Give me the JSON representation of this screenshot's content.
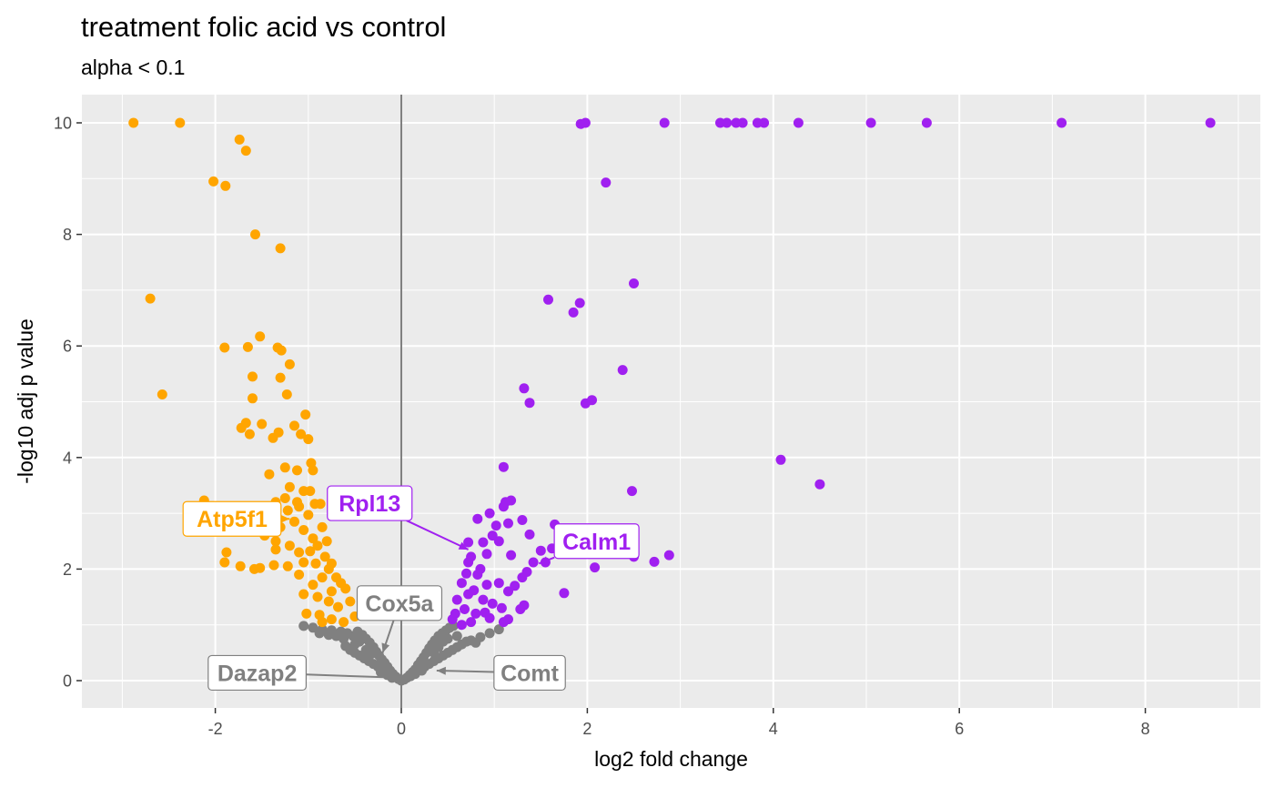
{
  "chart_data": {
    "type": "scatter",
    "title": "treatment folic acid vs control",
    "subtitle": "alpha < 0.1",
    "xlabel": "log2 fold change",
    "ylabel": "-log10 adj p value",
    "xlim": [
      -3.4,
      9.1
    ],
    "ylim": [
      -0.5,
      10.5
    ],
    "x_ticks": [
      -2,
      0,
      2,
      4,
      6,
      8
    ],
    "x_tick_labels": [
      "-2",
      "0",
      "2",
      "4",
      "6",
      "8"
    ],
    "y_ticks": [
      0,
      2,
      4,
      6,
      8,
      10
    ],
    "y_tick_labels": [
      "0",
      "2",
      "4",
      "6",
      "8",
      "10"
    ],
    "grid": true,
    "legend": "none",
    "vline_x": 0,
    "colors": {
      "down": "#FFA500",
      "up": "#A020F0",
      "ns": "#808080",
      "panel": "#EBEBEB",
      "grid": "#FFFFFF"
    },
    "series": [
      {
        "group": "down",
        "color": "#FFA500",
        "points": [
          [
            -2.88,
            10.0
          ],
          [
            -2.38,
            10.0
          ],
          [
            -1.74,
            9.7
          ],
          [
            -1.67,
            9.5
          ],
          [
            -2.02,
            8.95
          ],
          [
            -1.89,
            8.87
          ],
          [
            -1.57,
            8.0
          ],
          [
            -1.3,
            7.75
          ],
          [
            -2.7,
            6.85
          ],
          [
            -2.57,
            5.13
          ],
          [
            -1.9,
            5.97
          ],
          [
            -1.65,
            5.98
          ],
          [
            -1.52,
            6.17
          ],
          [
            -1.33,
            5.97
          ],
          [
            -1.29,
            5.92
          ],
          [
            -1.2,
            5.67
          ],
          [
            -1.6,
            5.45
          ],
          [
            -1.3,
            5.43
          ],
          [
            -1.6,
            5.06
          ],
          [
            -1.23,
            5.13
          ],
          [
            -1.67,
            4.62
          ],
          [
            -1.72,
            4.53
          ],
          [
            -1.63,
            4.42
          ],
          [
            -1.5,
            4.6
          ],
          [
            -1.38,
            4.35
          ],
          [
            -1.32,
            4.45
          ],
          [
            -1.15,
            4.57
          ],
          [
            -1.08,
            4.42
          ],
          [
            -1.03,
            4.77
          ],
          [
            -1.0,
            4.33
          ],
          [
            -0.97,
            3.9
          ],
          [
            -0.95,
            3.77
          ],
          [
            -1.42,
            3.7
          ],
          [
            -1.25,
            3.82
          ],
          [
            -1.12,
            3.77
          ],
          [
            -1.2,
            3.47
          ],
          [
            -1.05,
            3.4
          ],
          [
            -1.25,
            3.27
          ],
          [
            -1.12,
            3.2
          ],
          [
            -0.98,
            3.4
          ],
          [
            -0.93,
            3.17
          ],
          [
            -1.35,
            3.2
          ],
          [
            -1.22,
            3.05
          ],
          [
            -1.1,
            3.12
          ],
          [
            -1.0,
            2.97
          ],
          [
            -0.87,
            3.17
          ],
          [
            -1.52,
            2.85
          ],
          [
            -1.4,
            2.92
          ],
          [
            -1.3,
            2.75
          ],
          [
            -1.15,
            2.85
          ],
          [
            -1.05,
            2.7
          ],
          [
            -0.95,
            2.55
          ],
          [
            -0.85,
            2.75
          ],
          [
            -0.8,
            2.5
          ],
          [
            -1.47,
            2.6
          ],
          [
            -1.35,
            2.5
          ],
          [
            -1.2,
            2.42
          ],
          [
            -1.1,
            2.3
          ],
          [
            -0.98,
            2.32
          ],
          [
            -0.9,
            2.42
          ],
          [
            -0.82,
            2.22
          ],
          [
            -0.75,
            2.1
          ],
          [
            -2.12,
            3.23
          ],
          [
            -1.88,
            2.3
          ],
          [
            -1.9,
            2.12
          ],
          [
            -1.73,
            2.05
          ],
          [
            -1.58,
            2.0
          ],
          [
            -1.52,
            2.02
          ],
          [
            -1.37,
            2.07
          ],
          [
            -1.22,
            2.05
          ],
          [
            -1.05,
            2.12
          ],
          [
            -0.92,
            2.1
          ],
          [
            -0.78,
            2.0
          ],
          [
            -0.7,
            1.85
          ],
          [
            -0.65,
            1.75
          ],
          [
            -1.1,
            1.9
          ],
          [
            -0.95,
            1.72
          ],
          [
            -0.85,
            1.85
          ],
          [
            -0.75,
            1.6
          ],
          [
            -0.6,
            1.65
          ],
          [
            -1.05,
            1.55
          ],
          [
            -0.9,
            1.5
          ],
          [
            -0.78,
            1.42
          ],
          [
            -0.68,
            1.32
          ],
          [
            -0.55,
            1.42
          ],
          [
            -1.02,
            1.2
          ],
          [
            -0.88,
            1.18
          ],
          [
            -0.75,
            1.1
          ],
          [
            -0.62,
            1.05
          ],
          [
            -0.5,
            1.15
          ],
          [
            -0.85,
            1.05
          ],
          [
            -1.35,
            2.35
          ]
        ]
      },
      {
        "group": "up",
        "color": "#A020F0",
        "points": [
          [
            1.93,
            9.98
          ],
          [
            1.98,
            10.0
          ],
          [
            2.83,
            10.0
          ],
          [
            3.43,
            10.0
          ],
          [
            3.5,
            10.0
          ],
          [
            3.6,
            10.0
          ],
          [
            3.67,
            10.0
          ],
          [
            3.83,
            10.0
          ],
          [
            3.9,
            10.0
          ],
          [
            4.27,
            10.0
          ],
          [
            5.05,
            10.0
          ],
          [
            5.65,
            10.0
          ],
          [
            7.1,
            10.0
          ],
          [
            8.7,
            10.0
          ],
          [
            2.2,
            8.93
          ],
          [
            2.5,
            7.12
          ],
          [
            1.58,
            6.83
          ],
          [
            1.92,
            6.77
          ],
          [
            1.85,
            6.6
          ],
          [
            2.38,
            5.57
          ],
          [
            1.32,
            5.24
          ],
          [
            1.38,
            4.98
          ],
          [
            1.98,
            4.97
          ],
          [
            2.05,
            5.03
          ],
          [
            4.08,
            3.96
          ],
          [
            4.5,
            3.52
          ],
          [
            2.48,
            3.4
          ],
          [
            1.1,
            3.83
          ],
          [
            1.18,
            3.23
          ],
          [
            1.1,
            3.12
          ],
          [
            0.95,
            3.0
          ],
          [
            0.82,
            2.9
          ],
          [
            1.12,
            3.2
          ],
          [
            1.3,
            2.88
          ],
          [
            1.15,
            2.82
          ],
          [
            1.38,
            2.62
          ],
          [
            1.02,
            2.78
          ],
          [
            0.98,
            2.6
          ],
          [
            1.05,
            2.5
          ],
          [
            0.88,
            2.48
          ],
          [
            0.72,
            2.48
          ],
          [
            0.75,
            2.22
          ],
          [
            0.92,
            2.27
          ],
          [
            1.18,
            2.25
          ],
          [
            1.5,
            2.33
          ],
          [
            1.62,
            2.37
          ],
          [
            1.65,
            2.8
          ],
          [
            1.42,
            2.12
          ],
          [
            1.55,
            2.12
          ],
          [
            1.35,
            1.95
          ],
          [
            1.3,
            1.85
          ],
          [
            1.22,
            1.7
          ],
          [
            1.15,
            1.6
          ],
          [
            1.05,
            1.75
          ],
          [
            0.92,
            1.72
          ],
          [
            0.82,
            1.9
          ],
          [
            0.7,
            1.92
          ],
          [
            0.65,
            1.75
          ],
          [
            0.78,
            1.62
          ],
          [
            0.88,
            1.45
          ],
          [
            0.98,
            1.38
          ],
          [
            1.08,
            1.3
          ],
          [
            1.28,
            1.28
          ],
          [
            1.32,
            1.35
          ],
          [
            1.75,
            1.57
          ],
          [
            0.72,
            1.55
          ],
          [
            0.6,
            1.45
          ],
          [
            0.68,
            1.28
          ],
          [
            0.58,
            1.2
          ],
          [
            0.8,
            1.2
          ],
          [
            0.95,
            1.12
          ],
          [
            1.1,
            1.05
          ],
          [
            1.15,
            1.1
          ],
          [
            0.65,
            1.0
          ],
          [
            0.75,
            1.05
          ],
          [
            0.9,
            1.22
          ],
          [
            0.55,
            1.1
          ],
          [
            0.72,
            2.12
          ],
          [
            2.08,
            2.03
          ],
          [
            2.5,
            2.22
          ],
          [
            2.72,
            2.13
          ],
          [
            2.88,
            2.25
          ],
          [
            0.85,
            2.0
          ]
        ]
      },
      {
        "group": "ns",
        "color": "#808080",
        "points": [
          [
            -1.05,
            0.98
          ],
          [
            -0.95,
            0.95
          ],
          [
            -0.85,
            0.92
          ],
          [
            -0.75,
            0.9
          ],
          [
            -0.65,
            0.88
          ],
          [
            -0.58,
            0.85
          ],
          [
            -0.52,
            0.8
          ],
          [
            -0.47,
            0.88
          ],
          [
            -0.42,
            0.82
          ],
          [
            -0.38,
            0.75
          ],
          [
            -0.34,
            0.68
          ],
          [
            -0.3,
            0.6
          ],
          [
            -0.27,
            0.52
          ],
          [
            -0.24,
            0.45
          ],
          [
            -0.21,
            0.38
          ],
          [
            -0.18,
            0.32
          ],
          [
            -0.15,
            0.25
          ],
          [
            -0.12,
            0.18
          ],
          [
            -0.09,
            0.12
          ],
          [
            -0.06,
            0.07
          ],
          [
            -0.03,
            0.03
          ],
          [
            0.0,
            0.0
          ],
          [
            0.03,
            0.02
          ],
          [
            0.06,
            0.05
          ],
          [
            0.09,
            0.1
          ],
          [
            0.12,
            0.15
          ],
          [
            0.15,
            0.2
          ],
          [
            0.18,
            0.28
          ],
          [
            0.21,
            0.35
          ],
          [
            0.24,
            0.42
          ],
          [
            0.27,
            0.5
          ],
          [
            0.3,
            0.58
          ],
          [
            0.33,
            0.65
          ],
          [
            0.36,
            0.72
          ],
          [
            0.4,
            0.8
          ],
          [
            0.44,
            0.85
          ],
          [
            0.48,
            0.9
          ],
          [
            0.52,
            0.95
          ],
          [
            0.56,
            0.98
          ],
          [
            -0.6,
            0.62
          ],
          [
            -0.55,
            0.55
          ],
          [
            -0.5,
            0.5
          ],
          [
            -0.45,
            0.45
          ],
          [
            -0.4,
            0.4
          ],
          [
            -0.35,
            0.35
          ],
          [
            -0.3,
            0.3
          ],
          [
            -0.25,
            0.25
          ],
          [
            -0.2,
            0.2
          ],
          [
            0.2,
            0.2
          ],
          [
            0.25,
            0.25
          ],
          [
            0.3,
            0.3
          ],
          [
            0.35,
            0.35
          ],
          [
            0.4,
            0.4
          ],
          [
            0.45,
            0.45
          ],
          [
            0.5,
            0.5
          ],
          [
            0.55,
            0.55
          ],
          [
            0.6,
            0.6
          ],
          [
            0.65,
            0.65
          ],
          [
            0.7,
            0.7
          ],
          [
            0.75,
            0.72
          ],
          [
            0.8,
            0.68
          ],
          [
            -0.62,
            0.75
          ],
          [
            -0.7,
            0.8
          ],
          [
            -0.78,
            0.82
          ],
          [
            -0.88,
            0.85
          ],
          [
            -0.45,
            0.7
          ],
          [
            -0.5,
            0.65
          ],
          [
            0.45,
            0.7
          ],
          [
            0.5,
            0.75
          ],
          [
            0.6,
            0.8
          ],
          [
            0.85,
            0.78
          ],
          [
            0.95,
            0.85
          ],
          [
            1.05,
            0.92
          ],
          [
            -0.38,
            0.55
          ],
          [
            -0.32,
            0.48
          ],
          [
            0.35,
            0.5
          ],
          [
            0.4,
            0.6
          ],
          [
            -0.15,
            0.1
          ],
          [
            0.1,
            0.08
          ],
          [
            -0.1,
            0.05
          ],
          [
            0.15,
            0.12
          ],
          [
            -0.22,
            0.15
          ],
          [
            0.22,
            0.18
          ]
        ]
      }
    ],
    "labels": [
      {
        "text": "Atp5f1",
        "color": "#FFA500",
        "x": -1.2,
        "y": 2.9,
        "tx": -1.82,
        "ty": 2.9
      },
      {
        "text": "Rpl13",
        "color": "#A020F0",
        "x": 0.72,
        "y": 2.35,
        "tx": -0.34,
        "ty": 3.18
      },
      {
        "text": "Calm1",
        "color": "#A020F0",
        "x": 1.48,
        "y": 2.1,
        "tx": 2.1,
        "ty": 2.5
      },
      {
        "text": "Cox5a",
        "color": "#808080",
        "x": -0.2,
        "y": 0.5,
        "tx": -0.02,
        "ty": 1.39
      },
      {
        "text": "Dazap2",
        "color": "#808080",
        "x": 0.0,
        "y": 0.05,
        "tx": -1.55,
        "ty": 0.14
      },
      {
        "text": "Comt",
        "color": "#808080",
        "x": 0.38,
        "y": 0.18,
        "tx": 1.38,
        "ty": 0.14
      }
    ]
  }
}
